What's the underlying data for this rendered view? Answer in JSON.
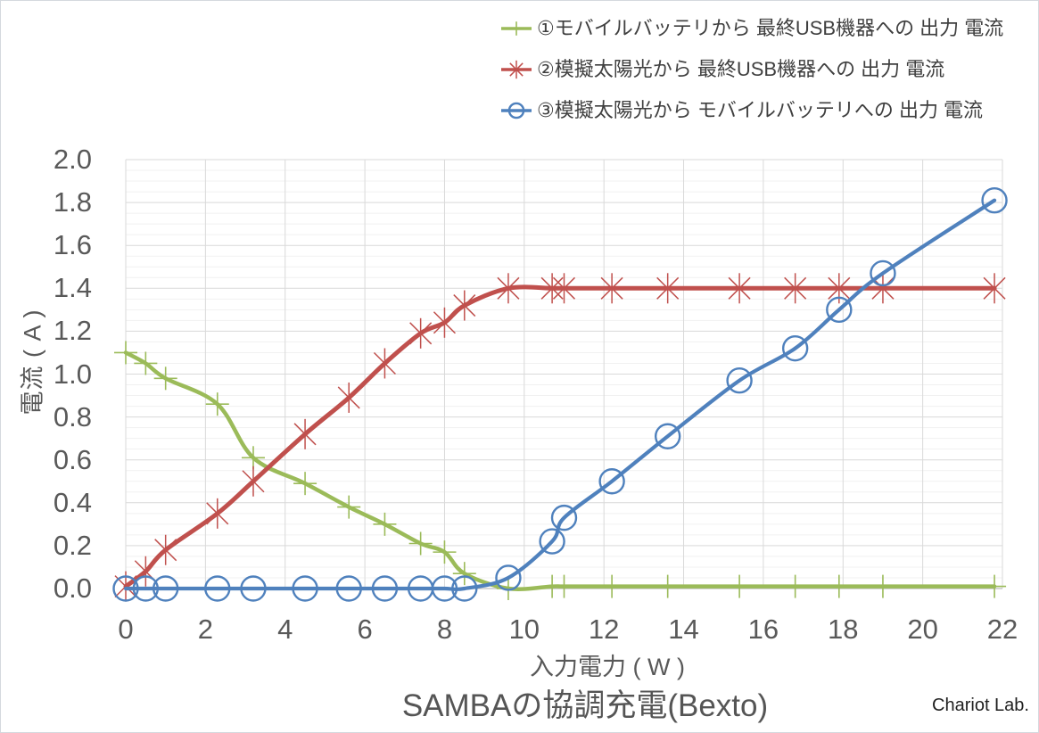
{
  "watermark": "Chariot Lab.",
  "legend": {
    "position": "top-right",
    "items": [
      {
        "label": "①モバイルバッテリから 最終USB機器への 出力 電流",
        "color": "#9bbb59",
        "marker": "plus"
      },
      {
        "label": "②模擬太陽光から 最終USB機器への 出力 電流",
        "color": "#c0504d",
        "marker": "asterisk"
      },
      {
        "label": "③模擬太陽光から モバイルバッテリへの 出力 電流",
        "color": "#4f81bd",
        "marker": "circle"
      }
    ]
  },
  "chart_data": {
    "type": "line",
    "title": "SAMBAの協調充電(Bexto)",
    "xlabel": "入力電力 ( W )",
    "ylabel": "電流 ( A )",
    "xlim": [
      0,
      22
    ],
    "ylim": [
      0,
      2.0
    ],
    "x_ticks": [
      0,
      2,
      4,
      6,
      8,
      10,
      12,
      14,
      16,
      18,
      20,
      22
    ],
    "y_ticks": [
      "0.0",
      "0.2",
      "0.4",
      "0.6",
      "0.8",
      "1.0",
      "1.2",
      "1.4",
      "1.6",
      "1.8",
      "2.0"
    ],
    "y_major_step": 0.2,
    "y_minor_step": 0.05,
    "grid": "vertical-major + horizontal-major + horizontal-minor",
    "line_style": "smoothed",
    "x": [
      0,
      0.5,
      1.0,
      2.3,
      3.2,
      4.5,
      5.6,
      6.5,
      7.4,
      8.0,
      8.5,
      9.6,
      10.7,
      11.0,
      12.2,
      13.6,
      15.4,
      16.8,
      17.9,
      19.0,
      21.8
    ],
    "series": [
      {
        "name": "①モバイルバッテリから 最終USB機器への 出力 電流",
        "color": "#9bbb59",
        "marker": "plus",
        "values": [
          1.1,
          1.05,
          0.98,
          0.86,
          0.61,
          0.49,
          0.38,
          0.3,
          0.21,
          0.17,
          0.07,
          0.0,
          0.01,
          0.01,
          0.01,
          0.01,
          0.01,
          0.01,
          0.01,
          0.01,
          0.01
        ]
      },
      {
        "name": "②模擬太陽光から 最終USB機器への 出力 電流",
        "color": "#c0504d",
        "marker": "asterisk",
        "values": [
          0.01,
          0.08,
          0.18,
          0.35,
          0.5,
          0.72,
          0.89,
          1.05,
          1.19,
          1.24,
          1.32,
          1.4,
          1.4,
          1.4,
          1.4,
          1.4,
          1.4,
          1.4,
          1.4,
          1.4,
          1.4
        ]
      },
      {
        "name": "③模擬太陽光から モバイルバッテリへの 出力 電流",
        "color": "#4f81bd",
        "marker": "circle",
        "values": [
          0.0,
          0.0,
          0.0,
          0.0,
          0.0,
          0.0,
          0.0,
          0.0,
          0.0,
          0.0,
          0.0,
          0.05,
          0.22,
          0.33,
          0.5,
          0.71,
          0.97,
          1.12,
          1.3,
          1.47,
          1.81
        ]
      }
    ]
  }
}
